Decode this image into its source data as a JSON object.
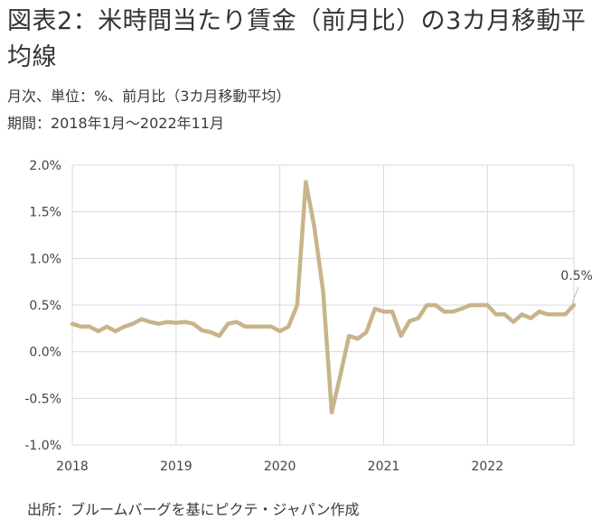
{
  "title": "図表2：米時間当たり賃金（前月比）の3カ月移動平均線",
  "subtitle": "月次、単位：%、前月比（3カ月移動平均）",
  "period": "期間：2018年1月～2022年11月",
  "source": "出所：ブルームバーグを基にピクテ・ジャパン作成",
  "chart_data": {
    "type": "line",
    "x_start": "2018-01",
    "x_end": "2022-11",
    "x_tick_labels": [
      "2018",
      "2019",
      "2020",
      "2021",
      "2022"
    ],
    "y_tick_labels": [
      "2.0%",
      "1.5%",
      "1.0%",
      "0.5%",
      "0.0%",
      "-0.5%",
      "-1.0%"
    ],
    "ylim": [
      -1.0,
      2.0
    ],
    "grid": true,
    "series": [
      {
        "color": "#c8b48a",
        "values": [
          0.3,
          0.27,
          0.27,
          0.22,
          0.27,
          0.22,
          0.27,
          0.3,
          0.35,
          0.32,
          0.3,
          0.32,
          0.31,
          0.32,
          0.3,
          0.23,
          0.21,
          0.17,
          0.3,
          0.32,
          0.27,
          0.27,
          0.27,
          0.27,
          0.22,
          0.27,
          0.5,
          1.82,
          1.33,
          0.65,
          -0.65,
          -0.25,
          0.17,
          0.14,
          0.21,
          0.46,
          0.43,
          0.43,
          0.17,
          0.33,
          0.36,
          0.5,
          0.5,
          0.43,
          0.43,
          0.46,
          0.5,
          0.5,
          0.5,
          0.4,
          0.4,
          0.32,
          0.4,
          0.36,
          0.43,
          0.4,
          0.4,
          0.4,
          0.5
        ]
      }
    ],
    "end_label": "0.5%"
  }
}
